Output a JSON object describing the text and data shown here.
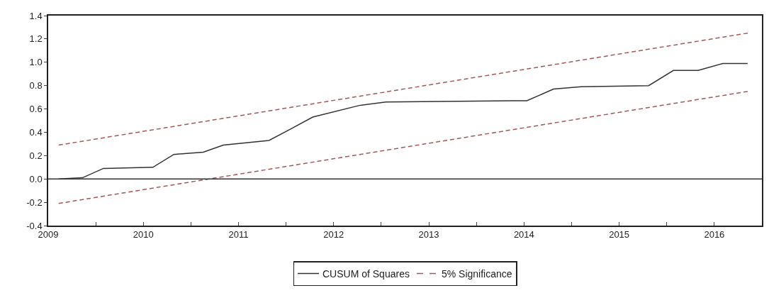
{
  "chart_data": {
    "type": "line",
    "legend": "bottom",
    "grid": false,
    "marker": "none",
    "xlim": [
      2009.5,
      2017
    ],
    "xticks": [
      {
        "value": 2009.5,
        "label": "2009"
      },
      {
        "value": 2010,
        "label": null
      },
      {
        "value": 2010.5,
        "label": "2010"
      },
      {
        "value": 2011,
        "label": null
      },
      {
        "value": 2011.5,
        "label": "2011"
      },
      {
        "value": 2012,
        "label": null
      },
      {
        "value": 2012.5,
        "label": "2012"
      },
      {
        "value": 2013,
        "label": null
      },
      {
        "value": 2013.5,
        "label": "2013"
      },
      {
        "value": 2014,
        "label": null
      },
      {
        "value": 2014.5,
        "label": "2014"
      },
      {
        "value": 2015,
        "label": null
      },
      {
        "value": 2015.5,
        "label": "2015"
      },
      {
        "value": 2016,
        "label": null
      },
      {
        "value": 2016.5,
        "label": "2016"
      }
    ],
    "ylim": [
      -0.4,
      1.4
    ],
    "yticks": [
      -0.4,
      -0.2,
      {
        "value": 0,
        "label": "0.0"
      },
      0.2,
      0.4,
      0.6,
      0.8,
      {
        "value": 1,
        "label": "1.0"
      },
      1.2,
      1.4
    ],
    "ref_lines": [
      {
        "axis": "y",
        "value": 0,
        "color": "#333333",
        "line_style": "solid"
      }
    ],
    "series": [
      {
        "name": "CUSUM of Squares",
        "color": "#333333",
        "line_style": "solid",
        "x": [
          2009.61,
          2009.86,
          2010.08,
          2010.6,
          2010.82,
          2011.13,
          2011.34,
          2011.82,
          2012.03,
          2012.28,
          2012.77,
          2013.05,
          2014.38,
          2014.53,
          2014.81,
          2015.1,
          2015.81,
          2016.07,
          2016.33,
          2016.59,
          2016.85
        ],
        "values": [
          0,
          0.01,
          0.09,
          0.1,
          0.21,
          0.23,
          0.29,
          0.33,
          0.42,
          0.53,
          0.63,
          0.66,
          0.67,
          0.67,
          0.77,
          0.79,
          0.8,
          0.93,
          0.93,
          0.99,
          0.99
        ]
      },
      {
        "name": "5% Significance",
        "color": "#a05a5a",
        "line_style": "dashed",
        "x": [
          2009.61,
          2016.85
        ],
        "values": [
          0.29,
          1.25
        ]
      },
      {
        "color": "#a05a5a",
        "line_style": "dashed",
        "x": [
          2009.61,
          2016.85
        ],
        "values": [
          -0.21,
          0.75
        ]
      }
    ]
  }
}
